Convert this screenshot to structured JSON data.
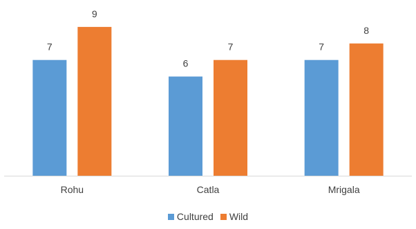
{
  "chart_data": {
    "type": "bar",
    "categories": [
      "Rohu",
      "Catla",
      "Mrigala"
    ],
    "series": [
      {
        "name": "Cultured",
        "values": [
          7,
          6,
          7
        ],
        "color": "#5b9bd5"
      },
      {
        "name": "Wild",
        "values": [
          9,
          7,
          8
        ],
        "color": "#ed7d31"
      }
    ],
    "ylim": [
      0,
      10
    ],
    "grid": false,
    "data_labels": true,
    "legend": "bottom",
    "axis_color": "#d9d9d9"
  }
}
